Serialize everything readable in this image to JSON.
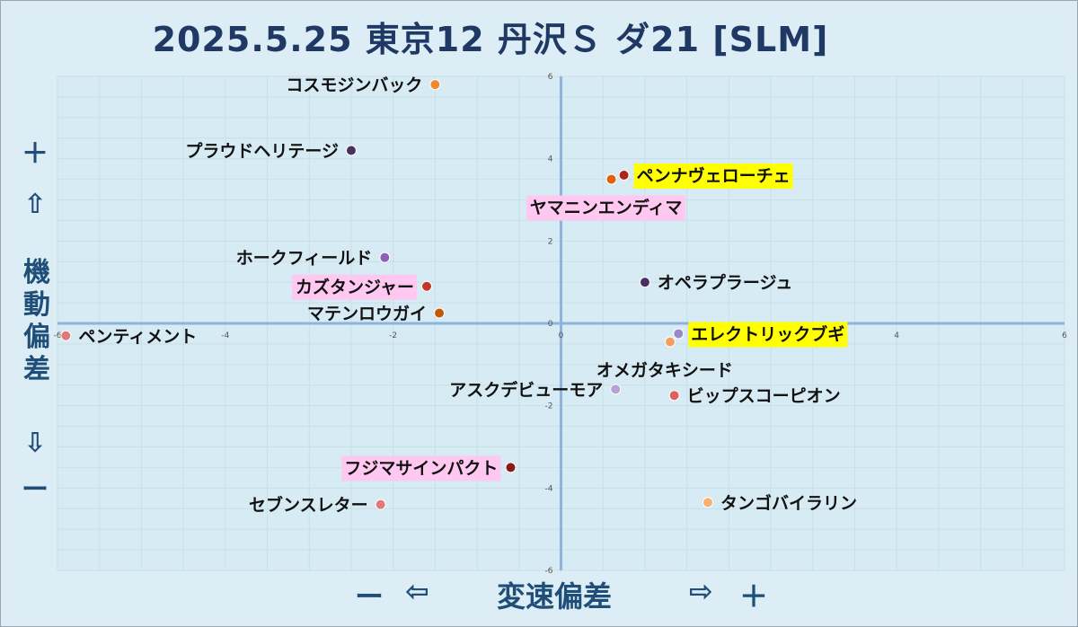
{
  "title": "2025.5.25 東京12 丹沢Ｓ ダ21 [SLM]",
  "y_legend": {
    "plus": "＋",
    "up_arrow": "⇧",
    "label_chars": [
      "機",
      "動",
      "偏",
      "差"
    ],
    "down_arrow": "⇩",
    "minus": "ー"
  },
  "x_legend": {
    "minus": "ー",
    "left_arrow": "⇦",
    "label": "変速偏差",
    "right_arrow": "⇨",
    "plus": "＋"
  },
  "chart_data": {
    "type": "scatter",
    "xlabel": "変速偏差",
    "ylabel": "機動偏差",
    "xlim": [
      -6,
      6
    ],
    "ylim": [
      -6,
      6
    ],
    "xticks": [
      "-6",
      "-4",
      "-2",
      "0",
      "2",
      "4",
      "6"
    ],
    "yticks": [
      "6",
      "4",
      "2",
      "0",
      "-2",
      "-4",
      "-6"
    ],
    "points": [
      {
        "name": "コスモジンバック",
        "x": -1.5,
        "y": 5.8,
        "color": "#f08a30",
        "label_side": "left",
        "highlight": ""
      },
      {
        "name": "プラウドヘリテージ",
        "x": -2.5,
        "y": 4.2,
        "color": "#4a3060",
        "label_side": "left",
        "highlight": ""
      },
      {
        "name": "ペンナヴェローチェ",
        "x": 0.75,
        "y": 3.6,
        "color": "#b02418",
        "label_side": "right",
        "highlight": "#ffff00"
      },
      {
        "name": "ヤマニンエンディマ",
        "x": 0.6,
        "y": 3.5,
        "color": "#e06010",
        "label_side": "below",
        "highlight": "#ffc8f0"
      },
      {
        "name": "ホークフィールド",
        "x": -2.1,
        "y": 1.6,
        "color": "#8e60b8",
        "label_side": "left",
        "highlight": ""
      },
      {
        "name": "オペラプラージュ",
        "x": 1.0,
        "y": 1.0,
        "color": "#4a3060",
        "label_side": "right",
        "highlight": ""
      },
      {
        "name": "カズタンジャー",
        "x": -1.6,
        "y": 0.9,
        "color": "#c0392b",
        "label_side": "left",
        "highlight": "#ffc8f0"
      },
      {
        "name": "マテンロウガイ",
        "x": -1.45,
        "y": 0.25,
        "color": "#c25808",
        "label_side": "left",
        "highlight": ""
      },
      {
        "name": "ペンティメント",
        "x": -5.9,
        "y": -0.3,
        "color": "#e07a7a",
        "label_side": "right",
        "highlight": ""
      },
      {
        "name": "エレクトリックブギ",
        "x": 1.4,
        "y": -0.25,
        "color": "#9a88c8",
        "label_side": "right",
        "highlight": "#ffff00"
      },
      {
        "name": "オメガタキシード",
        "x": 1.3,
        "y": -0.45,
        "color": "#f2a060",
        "label_side": "below",
        "highlight": ""
      },
      {
        "name": "アスクデビューモア",
        "x": 0.65,
        "y": -1.6,
        "color": "#b8a0d8",
        "label_side": "left",
        "highlight": ""
      },
      {
        "name": "ビップスコーピオン",
        "x": 1.35,
        "y": -1.75,
        "color": "#e06060",
        "label_side": "right",
        "highlight": ""
      },
      {
        "name": "フジマサインパクト",
        "x": -0.6,
        "y": -3.5,
        "color": "#8a1a1a",
        "label_side": "left",
        "highlight": "#ffc8f0"
      },
      {
        "name": "セブンスレター",
        "x": -2.15,
        "y": -4.4,
        "color": "#e07a7a",
        "label_side": "left",
        "highlight": ""
      },
      {
        "name": "タンゴバイラリン",
        "x": 1.75,
        "y": -4.35,
        "color": "#f8b070",
        "label_side": "right",
        "highlight": ""
      }
    ]
  }
}
